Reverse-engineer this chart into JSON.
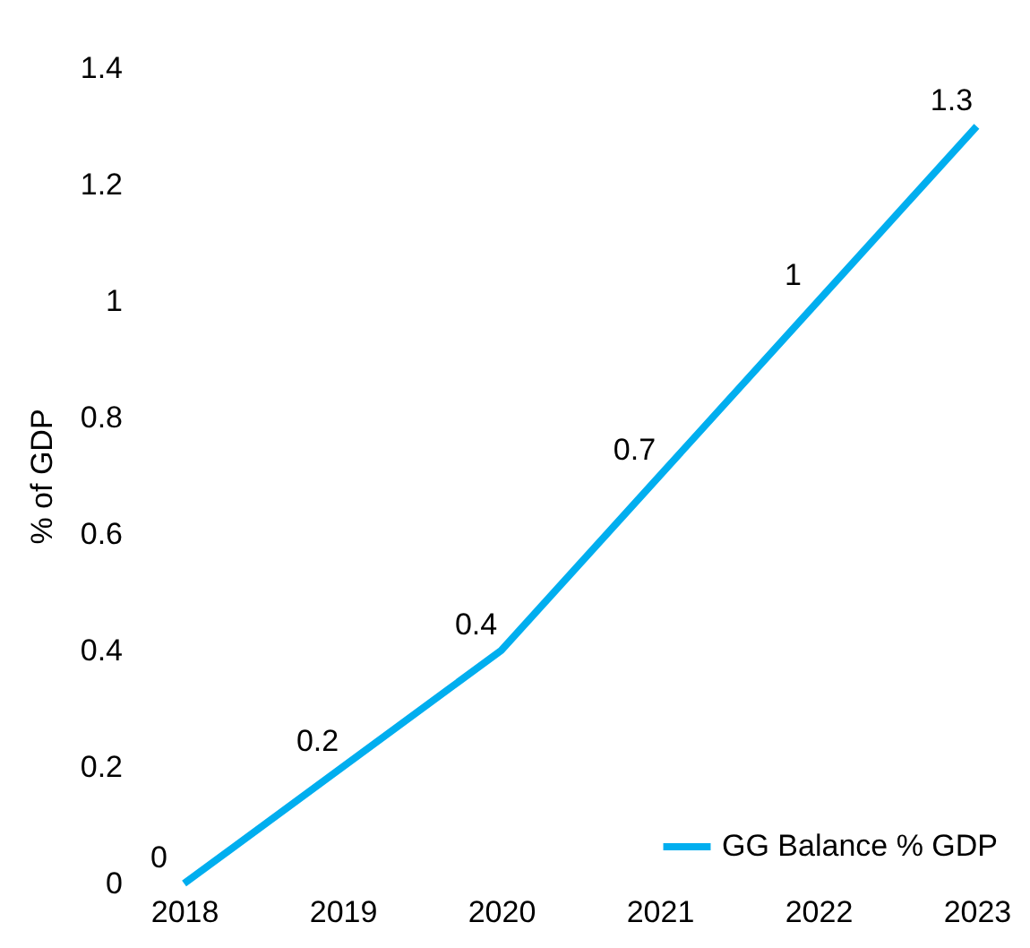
{
  "chart_data": {
    "type": "line",
    "ylabel": "% of GDP",
    "categories": [
      "2018",
      "2019",
      "2020",
      "2021",
      "2022",
      "2023"
    ],
    "series": [
      {
        "name": "GG Balance % GDP",
        "color": "#00aeef",
        "values": [
          0,
          0.2,
          0.4,
          0.7,
          1,
          1.3
        ]
      }
    ],
    "ylim": [
      0,
      1.4
    ],
    "yticks": [
      0,
      0.2,
      0.4,
      0.6,
      0.8,
      1,
      1.2,
      1.4
    ],
    "grid": false,
    "legend": "bottom right",
    "data_labels": true,
    "marker": "none"
  }
}
